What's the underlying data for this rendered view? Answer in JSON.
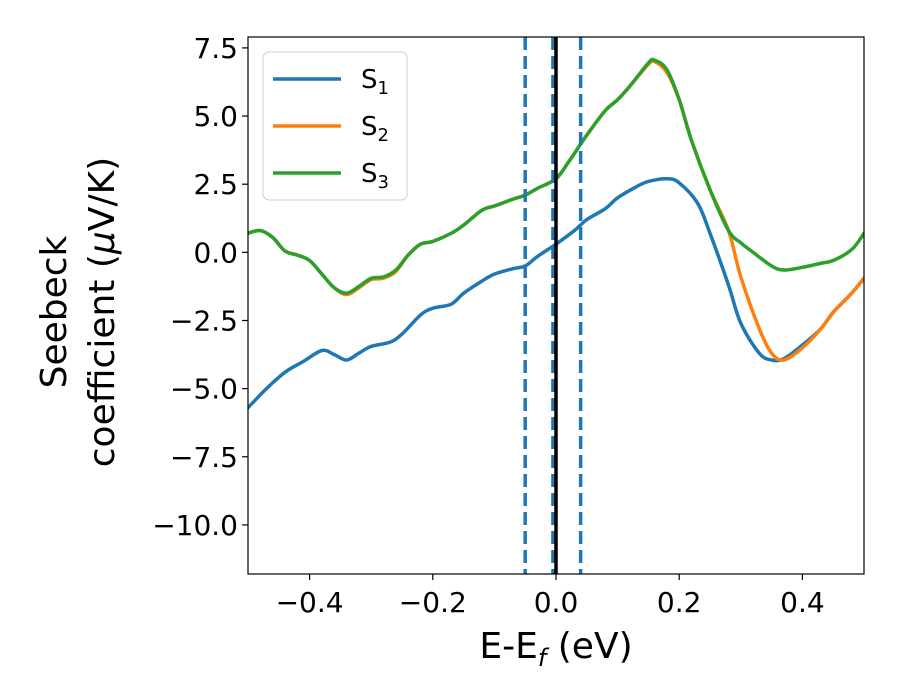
{
  "chart_data": {
    "type": "line",
    "xlabel_main": "E-E",
    "xlabel_sub": "f",
    "xlabel_unit": " (eV)",
    "ylabel_line1": "Seebeck",
    "ylabel_line2_prefix": "coefficient  (",
    "ylabel_mu": "μ",
    "ylabel_line2_suffix": "V/K)",
    "xlim": [
      -0.5,
      0.5
    ],
    "ylim": [
      -11.8,
      7.9
    ],
    "xticks": [
      -0.4,
      -0.2,
      0.0,
      0.2,
      0.4
    ],
    "xtick_labels": [
      "−0.4",
      "−0.2",
      "0.0",
      "0.2",
      "0.4"
    ],
    "yticks": [
      -10.0,
      -7.5,
      -5.0,
      -2.5,
      0.0,
      2.5,
      5.0,
      7.5
    ],
    "ytick_labels": [
      "−10.0",
      "−7.5",
      "−5.0",
      "−2.5",
      "0.0",
      "2.5",
      "5.0",
      "7.5"
    ],
    "grid": false,
    "legend_position": "upper-left",
    "vlines": [
      {
        "x": -0.05,
        "style": "dashed",
        "color": "#1f77b4"
      },
      {
        "x": -0.005,
        "style": "dashed",
        "color": "#1f77b4"
      },
      {
        "x": 0.04,
        "style": "dashed",
        "color": "#1f77b4"
      },
      {
        "x": 0.0,
        "style": "solid",
        "color": "#000000"
      }
    ],
    "series": [
      {
        "name": "S",
        "subscript": "1",
        "color": "#1f77b4",
        "x": [
          -0.5,
          -0.47,
          -0.44,
          -0.41,
          -0.38,
          -0.36,
          -0.34,
          -0.32,
          -0.3,
          -0.27,
          -0.25,
          -0.22,
          -0.2,
          -0.17,
          -0.15,
          -0.12,
          -0.1,
          -0.07,
          -0.05,
          -0.03,
          0.0,
          0.03,
          0.05,
          0.08,
          0.1,
          0.13,
          0.15,
          0.18,
          0.2,
          0.23,
          0.25,
          0.28,
          0.3,
          0.33,
          0.35,
          0.37,
          0.4,
          0.43,
          0.45,
          0.48,
          0.5
        ],
        "y": [
          -5.7,
          -5.0,
          -4.4,
          -4.0,
          -3.6,
          -3.75,
          -3.95,
          -3.7,
          -3.45,
          -3.3,
          -3.0,
          -2.3,
          -2.05,
          -1.9,
          -1.5,
          -1.05,
          -0.8,
          -0.6,
          -0.5,
          -0.15,
          0.3,
          0.8,
          1.2,
          1.6,
          2.0,
          2.4,
          2.6,
          2.7,
          2.55,
          1.8,
          0.7,
          -1.2,
          -2.6,
          -3.7,
          -3.95,
          -3.9,
          -3.4,
          -2.8,
          -2.2,
          -1.5,
          -0.95
        ]
      },
      {
        "name": "S",
        "subscript": "2",
        "color": "#ff7f0e",
        "x": [
          -0.5,
          -0.48,
          -0.46,
          -0.44,
          -0.42,
          -0.4,
          -0.38,
          -0.36,
          -0.34,
          -0.32,
          -0.3,
          -0.28,
          -0.26,
          -0.24,
          -0.22,
          -0.2,
          -0.17,
          -0.15,
          -0.12,
          -0.1,
          -0.07,
          -0.05,
          -0.03,
          0.0,
          0.02,
          0.05,
          0.08,
          0.1,
          0.12,
          0.15,
          0.16,
          0.18,
          0.2,
          0.22,
          0.25,
          0.28,
          0.3,
          0.33,
          0.35,
          0.37,
          0.4,
          0.43,
          0.45,
          0.48,
          0.5
        ],
        "y": [
          0.7,
          0.8,
          0.55,
          0.05,
          -0.1,
          -0.3,
          -0.8,
          -1.3,
          -1.55,
          -1.3,
          -1.0,
          -0.95,
          -0.7,
          -0.1,
          0.3,
          0.4,
          0.7,
          1.0,
          1.55,
          1.7,
          1.95,
          2.1,
          2.35,
          2.7,
          3.3,
          4.3,
          5.2,
          5.6,
          6.1,
          6.9,
          7.0,
          6.6,
          5.6,
          4.1,
          2.3,
          0.8,
          -0.9,
          -2.8,
          -3.7,
          -3.95,
          -3.5,
          -2.8,
          -2.2,
          -1.5,
          -0.95
        ]
      },
      {
        "name": "S",
        "subscript": "3",
        "color": "#2ca02c",
        "x": [
          -0.5,
          -0.48,
          -0.46,
          -0.44,
          -0.42,
          -0.4,
          -0.38,
          -0.36,
          -0.34,
          -0.32,
          -0.3,
          -0.28,
          -0.26,
          -0.24,
          -0.22,
          -0.2,
          -0.17,
          -0.15,
          -0.12,
          -0.1,
          -0.07,
          -0.05,
          -0.03,
          0.0,
          0.02,
          0.05,
          0.08,
          0.1,
          0.12,
          0.15,
          0.16,
          0.18,
          0.2,
          0.22,
          0.25,
          0.28,
          0.3,
          0.32,
          0.35,
          0.37,
          0.4,
          0.43,
          0.45,
          0.48,
          0.5
        ],
        "y": [
          0.7,
          0.8,
          0.55,
          0.05,
          -0.1,
          -0.3,
          -0.8,
          -1.3,
          -1.5,
          -1.25,
          -0.95,
          -0.9,
          -0.65,
          -0.1,
          0.3,
          0.4,
          0.7,
          1.0,
          1.55,
          1.7,
          1.95,
          2.1,
          2.35,
          2.7,
          3.3,
          4.3,
          5.2,
          5.6,
          6.1,
          6.95,
          7.05,
          6.7,
          5.6,
          4.1,
          2.3,
          0.8,
          0.35,
          0.0,
          -0.5,
          -0.65,
          -0.55,
          -0.4,
          -0.3,
          0.1,
          0.7
        ]
      }
    ]
  }
}
